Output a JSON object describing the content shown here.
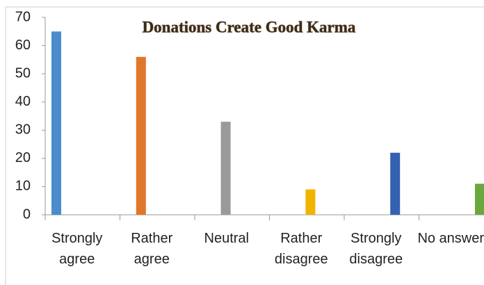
{
  "chart_data": {
    "type": "bar",
    "title": "Donations Create Good Karma",
    "categories": [
      "Strongly agree",
      "Rather agree",
      "Neutral",
      "Rather disagree",
      "Strongly disagree",
      "No answer"
    ],
    "values": [
      65,
      56,
      33,
      9,
      22,
      11
    ],
    "colors": [
      "#4a8ccc",
      "#e0772a",
      "#9a9a9a",
      "#f0b400",
      "#3461b0",
      "#6aa83e"
    ],
    "ylim": [
      0,
      70
    ],
    "yticks": [
      0,
      10,
      20,
      30,
      40,
      50,
      60,
      70
    ],
    "grid": false
  }
}
